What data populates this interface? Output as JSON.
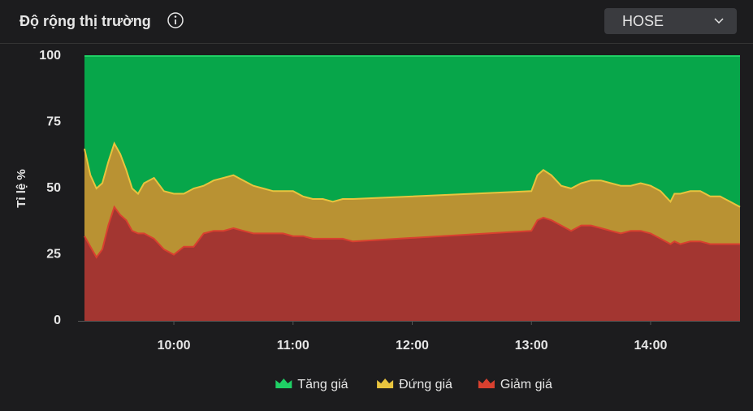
{
  "header": {
    "title": "Độ rộng thị trường"
  },
  "exchange_select": {
    "value": "HOSE"
  },
  "chart_data": {
    "type": "stacked_area",
    "y_label": "Tỉ lệ %",
    "x": [
      "09:15",
      "09:18",
      "09:21",
      "09:24",
      "09:27",
      "09:30",
      "09:33",
      "09:36",
      "09:39",
      "09:42",
      "09:45",
      "09:50",
      "09:55",
      "10:00",
      "10:05",
      "10:10",
      "10:15",
      "10:20",
      "10:25",
      "10:30",
      "10:35",
      "10:40",
      "10:45",
      "10:50",
      "10:55",
      "11:00",
      "11:05",
      "11:10",
      "11:15",
      "11:20",
      "11:25",
      "11:30",
      "13:00",
      "13:03",
      "13:06",
      "13:10",
      "13:15",
      "13:20",
      "13:25",
      "13:30",
      "13:35",
      "13:40",
      "13:45",
      "13:50",
      "13:55",
      "14:00",
      "14:05",
      "14:10",
      "14:12",
      "14:15",
      "14:20",
      "14:25",
      "14:30",
      "14:35",
      "14:40",
      "14:45"
    ],
    "series": [
      {
        "name": "Tăng giá",
        "color": "#07a64a",
        "line_color": "#1fd065",
        "values": [
          35,
          45,
          50,
          48,
          40,
          33,
          37,
          43,
          50,
          52,
          48,
          46,
          51,
          52,
          52,
          50,
          49,
          47,
          46,
          45,
          47,
          49,
          50,
          51,
          51,
          51,
          53,
          54,
          54,
          55,
          54,
          54,
          51,
          45,
          43,
          45,
          49,
          50,
          48,
          47,
          47,
          48,
          49,
          49,
          48,
          49,
          51,
          55,
          52,
          52,
          51,
          51,
          53,
          53,
          55,
          57
        ]
      },
      {
        "name": "Đứng giá",
        "color": "#b99233",
        "line_color": "#e8c43e",
        "values": [
          33,
          27,
          26,
          25,
          24,
          24,
          23,
          19,
          16,
          15,
          19,
          23,
          22,
          23,
          20,
          22,
          18,
          19,
          20,
          20,
          19,
          18,
          17,
          16,
          16,
          17,
          15,
          15,
          15,
          14,
          15,
          16,
          15,
          17,
          18,
          17,
          15,
          16,
          16,
          17,
          18,
          18,
          18,
          17,
          18,
          18,
          18,
          16,
          18,
          19,
          19,
          19,
          18,
          18,
          16,
          14
        ]
      },
      {
        "name": "Giảm giá",
        "color": "#a33631",
        "line_color": "#d9402f",
        "values": [
          32,
          28,
          24,
          27,
          36,
          43,
          40,
          38,
          34,
          33,
          33,
          31,
          27,
          25,
          28,
          28,
          33,
          34,
          34,
          35,
          34,
          33,
          33,
          33,
          33,
          32,
          32,
          31,
          31,
          31,
          31,
          30,
          34,
          38,
          39,
          38,
          36,
          34,
          36,
          36,
          35,
          34,
          33,
          34,
          34,
          33,
          31,
          29,
          30,
          29,
          30,
          30,
          29,
          29,
          29,
          29
        ]
      }
    ],
    "xlim": [
      "09:15",
      "14:45"
    ],
    "xticks": [
      "10:00",
      "11:00",
      "12:00",
      "13:00",
      "14:00"
    ],
    "ylim": [
      0,
      100
    ],
    "yticks": [
      0,
      25,
      50,
      75,
      100
    ],
    "legend": "bottom"
  }
}
